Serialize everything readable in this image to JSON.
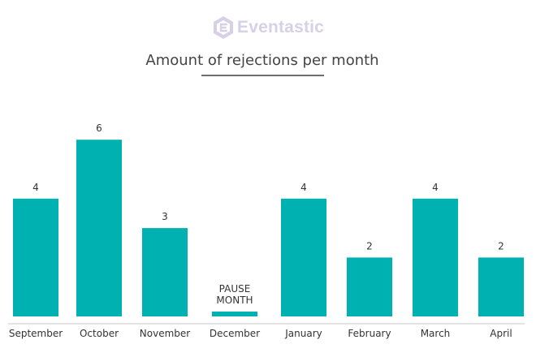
{
  "brand": {
    "name": "Eventastic",
    "logo_icon": "hexagon-e-icon",
    "color": "#d7d0e7"
  },
  "chart_data": {
    "type": "bar",
    "title": "Amount of rejections per month",
    "xlabel": "",
    "ylabel": "",
    "categories": [
      "September",
      "October",
      "November",
      "December",
      "January",
      "February",
      "March",
      "April"
    ],
    "values": [
      4,
      6,
      3,
      null,
      4,
      2,
      4,
      2
    ],
    "value_labels": [
      "4",
      "6",
      "3",
      "PAUSE\nMONTH",
      "4",
      "2",
      "4",
      "2"
    ],
    "ylim": [
      0,
      6
    ],
    "grid": false,
    "legend": "none",
    "bar_color": "#00b1b1",
    "axis_color": "#c7c7c7"
  }
}
